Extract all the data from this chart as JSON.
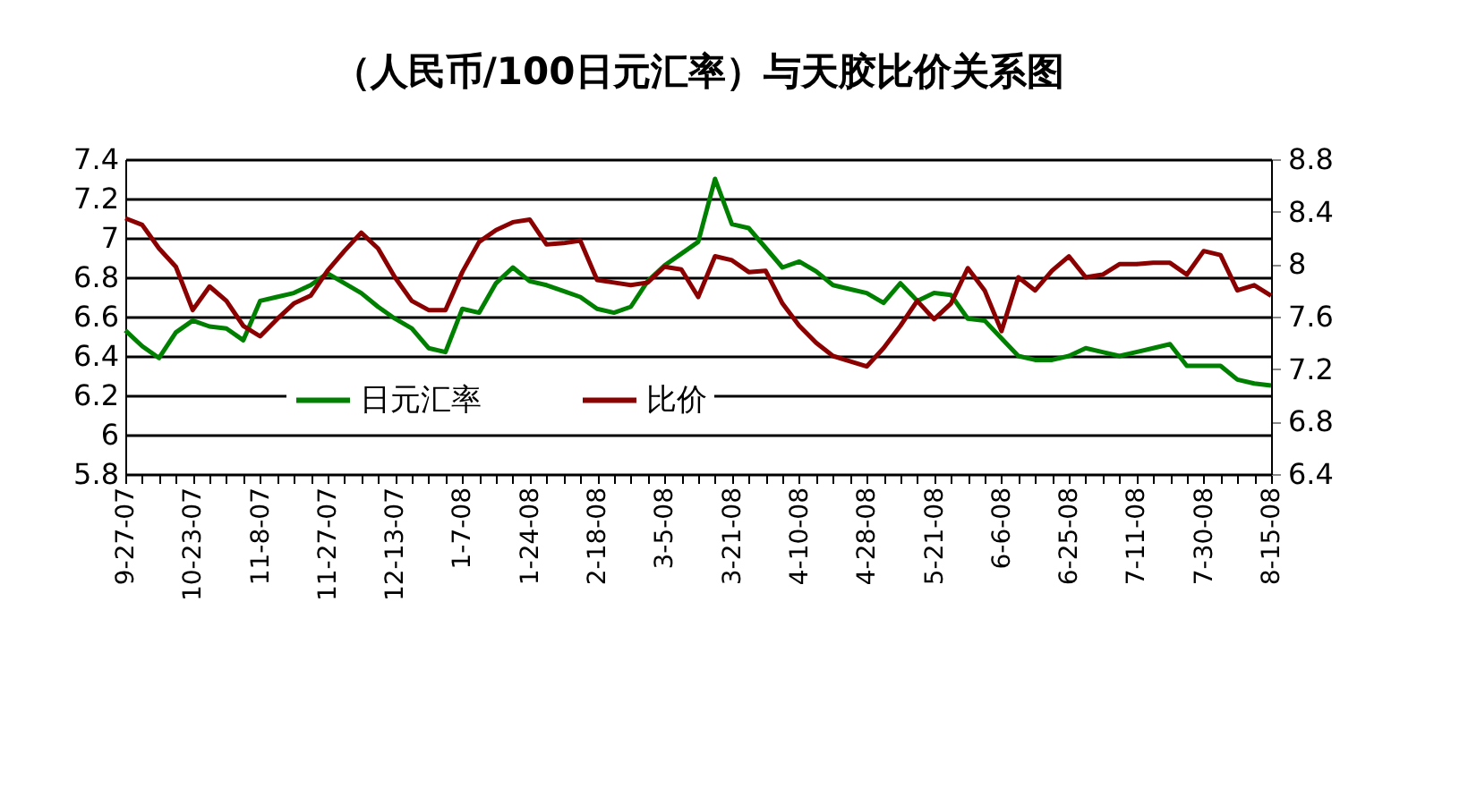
{
  "chart_data": {
    "type": "line",
    "title": "（人民币/100日元汇率）与天胶比价关系图",
    "categories": [
      "9-27-07",
      null,
      null,
      null,
      "10-23-07",
      null,
      null,
      null,
      "11-8-07",
      null,
      null,
      null,
      "11-27-07",
      null,
      null,
      null,
      "12-13-07",
      null,
      null,
      null,
      "1-7-08",
      null,
      null,
      null,
      "1-24-08",
      null,
      null,
      null,
      "2-18-08",
      null,
      null,
      null,
      "3-5-08",
      null,
      null,
      null,
      "3-21-08",
      null,
      null,
      null,
      "4-10-08",
      null,
      null,
      null,
      "4-28-08",
      null,
      null,
      null,
      "5-21-08",
      null,
      null,
      null,
      "6-6-08",
      null,
      null,
      null,
      "6-25-08",
      null,
      null,
      null,
      "7-11-08",
      null,
      null,
      null,
      "7-30-08",
      null,
      null,
      null,
      "8-15-08"
    ],
    "series": [
      {
        "name": "日元汇率",
        "color": "#008000",
        "values": [
          6.53,
          6.45,
          6.39,
          6.52,
          6.58,
          6.55,
          6.54,
          6.48,
          6.68,
          6.7,
          6.72,
          6.76,
          6.82,
          6.77,
          6.72,
          6.65,
          6.59,
          6.54,
          6.44,
          6.42,
          6.64,
          6.62,
          6.77,
          6.85,
          6.78,
          6.76,
          6.73,
          6.7,
          6.64,
          6.62,
          6.65,
          6.78,
          6.86,
          6.92,
          6.98,
          7.3,
          7.07,
          7.05,
          6.95,
          6.85,
          6.88,
          6.83,
          6.76,
          6.74,
          6.72,
          6.67,
          6.77,
          6.68,
          6.72,
          6.71,
          6.59,
          6.58,
          6.49,
          6.4,
          6.38,
          6.38,
          6.4,
          6.44,
          6.42,
          6.4,
          6.42,
          6.44,
          6.46,
          6.35,
          6.35,
          6.35,
          6.28,
          6.26,
          6.25
        ]
      },
      {
        "name": "比价",
        "color": "#8b0000",
        "axis": "y2",
        "values": [
          8.35,
          8.3,
          8.12,
          7.98,
          7.65,
          7.83,
          7.72,
          7.53,
          7.45,
          7.58,
          7.7,
          7.76,
          7.95,
          8.1,
          8.24,
          8.12,
          7.9,
          7.72,
          7.65,
          7.65,
          7.94,
          8.17,
          8.26,
          8.32,
          8.34,
          8.15,
          8.16,
          8.18,
          7.88,
          7.86,
          7.84,
          7.86,
          7.98,
          7.96,
          7.75,
          8.06,
          8.03,
          7.94,
          7.95,
          7.7,
          7.53,
          7.4,
          7.3,
          7.26,
          7.22,
          7.36,
          7.53,
          7.72,
          7.58,
          7.7,
          7.97,
          7.8,
          7.49,
          7.9,
          7.8,
          7.95,
          8.06,
          7.9,
          7.92,
          8.0,
          8.0,
          8.01,
          8.01,
          7.92,
          8.1,
          8.07,
          7.8,
          7.84,
          7.76
        ]
      }
    ],
    "ylim": [
      5.8,
      7.4
    ],
    "yticks": [
      5.8,
      6,
      6.2,
      6.4,
      6.6,
      6.8,
      7,
      7.2,
      7.4
    ],
    "y2lim": [
      6.4,
      8.8
    ],
    "y2ticks": [
      6.4,
      6.8,
      7.2,
      7.6,
      8,
      8.4,
      8.8
    ],
    "grid": "y",
    "legend": "bottom",
    "marker": "none",
    "line_style": "solid"
  }
}
